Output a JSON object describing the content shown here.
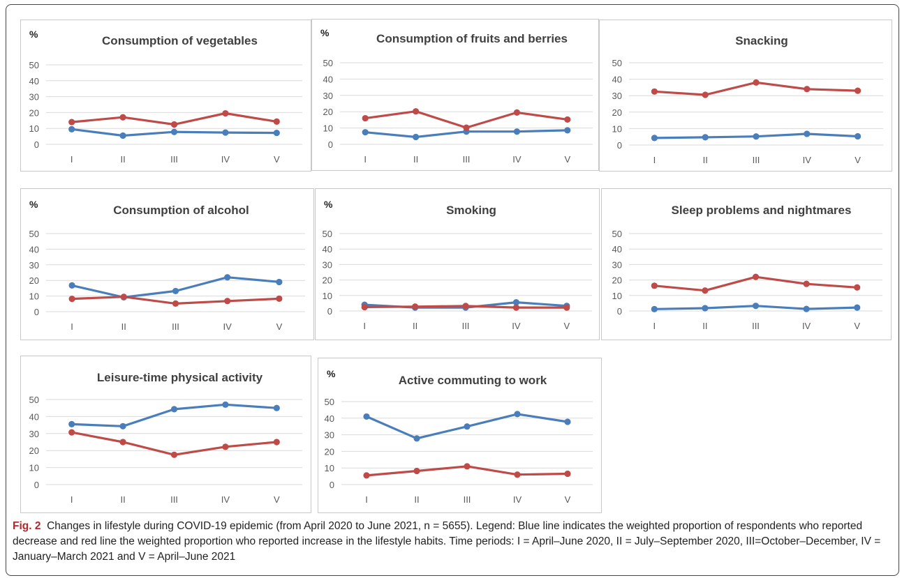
{
  "colors": {
    "decrease": "#4a7ebb",
    "increase": "#be4b48"
  },
  "caption": {
    "label": "Fig. 2",
    "text": "Changes in lifestyle during COVID-19 epidemic (from April 2020 to June 2021, n = 5655). Legend: Blue line indicates the weighted proportion of respondents who reported decrease and red line the weighted proportion who reported increase in the lifestyle habits. Time periods: I = April–June 2020, II = July–September 2020, III=October–December, IV = January–March 2021 and V = April–June 2021"
  },
  "chart_data": [
    {
      "type": "line",
      "title": "Consumption of vegetables",
      "unit": "%",
      "categories": [
        "I",
        "II",
        "III",
        "IV",
        "V"
      ],
      "ylim": [
        0,
        50
      ],
      "yticks": [
        0,
        10,
        20,
        30,
        40,
        50
      ],
      "grid": true,
      "series": [
        {
          "values": [
            9.5,
            5.5,
            7.8,
            7.4,
            7.2
          ]
        },
        {
          "values": [
            14,
            17,
            12.5,
            19.5,
            14.3
          ]
        }
      ]
    },
    {
      "type": "line",
      "title": "Consumption of fruits and berries",
      "unit": "%",
      "categories": [
        "I",
        "II",
        "III",
        "IV",
        "V"
      ],
      "ylim": [
        0,
        50
      ],
      "yticks": [
        0,
        10,
        20,
        30,
        40,
        50
      ],
      "grid": true,
      "series": [
        {
          "values": [
            7.4,
            4.5,
            7.8,
            7.8,
            8.6
          ]
        },
        {
          "values": [
            16,
            20.2,
            10.2,
            19.5,
            15.2
          ]
        }
      ]
    },
    {
      "type": "line",
      "title": "Snacking",
      "unit": "",
      "categories": [
        "I",
        "II",
        "III",
        "IV",
        "V"
      ],
      "ylim": [
        0,
        50
      ],
      "yticks": [
        0,
        10,
        20,
        30,
        40,
        50
      ],
      "grid": true,
      "series": [
        {
          "values": [
            4.3,
            4.7,
            5.2,
            6.8,
            5.3
          ]
        },
        {
          "values": [
            32.5,
            30.5,
            38,
            34,
            33
          ]
        }
      ]
    },
    {
      "type": "line",
      "title": "Consumption of alcohol",
      "unit": "%",
      "categories": [
        "I",
        "II",
        "III",
        "IV",
        "V"
      ],
      "ylim": [
        0,
        50
      ],
      "yticks": [
        0,
        10,
        20,
        30,
        40,
        50
      ],
      "grid": true,
      "series": [
        {
          "values": [
            16.8,
            9.2,
            13.2,
            22,
            19
          ]
        },
        {
          "values": [
            8.2,
            9.5,
            5.2,
            6.8,
            8.3
          ]
        }
      ]
    },
    {
      "type": "line",
      "title": "Smoking",
      "unit": "%",
      "categories": [
        "I",
        "II",
        "III",
        "IV",
        "V"
      ],
      "ylim": [
        0,
        50
      ],
      "yticks": [
        0,
        10,
        20,
        30,
        40,
        50
      ],
      "grid": true,
      "series": [
        {
          "values": [
            4,
            2.2,
            2.2,
            5.6,
            3.3
          ]
        },
        {
          "values": [
            2.5,
            2.8,
            3.2,
            2.2,
            2.2
          ]
        }
      ]
    },
    {
      "type": "line",
      "title": "Sleep problems and nightmares",
      "unit": "",
      "categories": [
        "I",
        "II",
        "III",
        "IV",
        "V"
      ],
      "ylim": [
        0,
        50
      ],
      "yticks": [
        0,
        10,
        20,
        30,
        40,
        50
      ],
      "grid": true,
      "series": [
        {
          "values": [
            1.2,
            1.8,
            3.3,
            1.3,
            2.2
          ]
        },
        {
          "values": [
            16.3,
            13.2,
            22,
            17.5,
            15.2
          ]
        }
      ]
    },
    {
      "type": "line",
      "title": "Leisure-time physical activity",
      "unit": "",
      "categories": [
        "I",
        "II",
        "III",
        "IV",
        "V"
      ],
      "ylim": [
        0,
        50
      ],
      "yticks": [
        0,
        10,
        20,
        30,
        40,
        50
      ],
      "grid": true,
      "series": [
        {
          "values": [
            35.5,
            34.3,
            44.3,
            47,
            45
          ]
        },
        {
          "values": [
            30.7,
            25,
            17.5,
            22.2,
            25
          ]
        }
      ]
    },
    {
      "type": "line",
      "title": "Active commuting to work",
      "unit": "%",
      "categories": [
        "I",
        "II",
        "III",
        "IV",
        "V"
      ],
      "ylim": [
        0,
        50
      ],
      "yticks": [
        0,
        10,
        20,
        30,
        40,
        50
      ],
      "grid": true,
      "series": [
        {
          "values": [
            41,
            27.8,
            35,
            42.5,
            37.8
          ]
        },
        {
          "values": [
            5.5,
            8.2,
            11,
            6,
            6.5
          ]
        }
      ]
    }
  ]
}
